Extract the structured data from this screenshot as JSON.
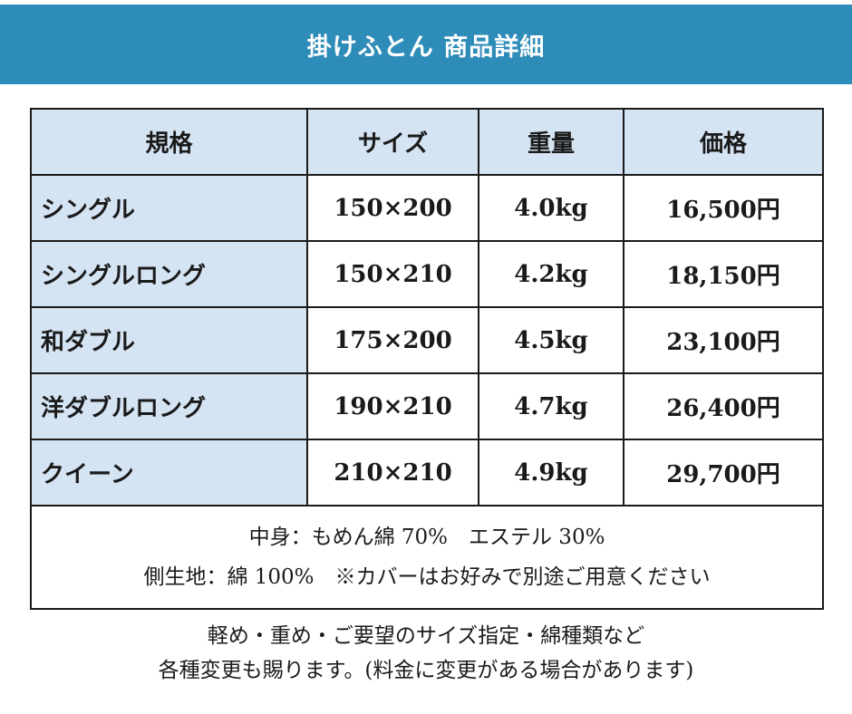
{
  "banner": {
    "title": "掛けふとん 商品詳細"
  },
  "table": {
    "headers": [
      "規格",
      "サイズ",
      "重量",
      "価格"
    ],
    "rows": [
      {
        "name": "シングル",
        "size": "150×200",
        "weight": "4.0kg",
        "price": "16,500円"
      },
      {
        "name": "シングルロング",
        "size": "150×210",
        "weight": "4.2kg",
        "price": "18,150円"
      },
      {
        "name": "和ダブル",
        "size": "175×200",
        "weight": "4.5kg",
        "price": "23,100円"
      },
      {
        "name": "洋ダブルロング",
        "size": "190×210",
        "weight": "4.7kg",
        "price": "26,400円"
      },
      {
        "name": "クイーン",
        "size": "210×210",
        "weight": "4.9kg",
        "price": "29,700円"
      }
    ],
    "notes": [
      "中身：もめん綿 70%　エステル 30%",
      "側生地：綿 100%　※カバーはお好みで別途ご用意ください"
    ]
  },
  "footer": {
    "lines": [
      "軽め・重め・ご要望のサイズ指定・綿種類など",
      "各種変更も賜ります。(料金に変更がある場合があります)"
    ]
  }
}
